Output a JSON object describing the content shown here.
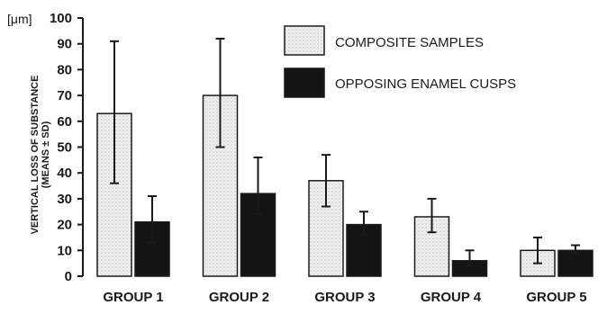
{
  "chart_data": {
    "type": "bar",
    "categories": [
      "GROUP 1",
      "GROUP 2",
      "GROUP 3",
      "GROUP 4",
      "GROUP 5"
    ],
    "series": [
      {
        "name": "COMPOSITE SAMPLES",
        "values": [
          63,
          70,
          37,
          23,
          10
        ],
        "sd_low": [
          36,
          50,
          27,
          17,
          5
        ],
        "sd_high": [
          91,
          92,
          47,
          30,
          15
        ],
        "color": "#e8e8e8"
      },
      {
        "name": "OPPOSING ENAMEL CUSPS",
        "values": [
          21,
          32,
          20,
          6,
          10
        ],
        "sd_low": [
          13,
          24,
          16,
          4,
          9
        ],
        "sd_high": [
          31,
          46,
          25,
          10,
          12
        ],
        "color": "#141414"
      }
    ],
    "ylabel_line1": "VERTICAL LOSS OF SUBSTANCE",
    "ylabel_line2": "(MEANS ± SD)",
    "yunit": "[μm]",
    "ylim": [
      0,
      100
    ],
    "yticks": [
      0,
      10,
      20,
      30,
      40,
      50,
      60,
      70,
      80,
      90,
      100
    ],
    "legend_position": "top-right",
    "grid": false
  }
}
